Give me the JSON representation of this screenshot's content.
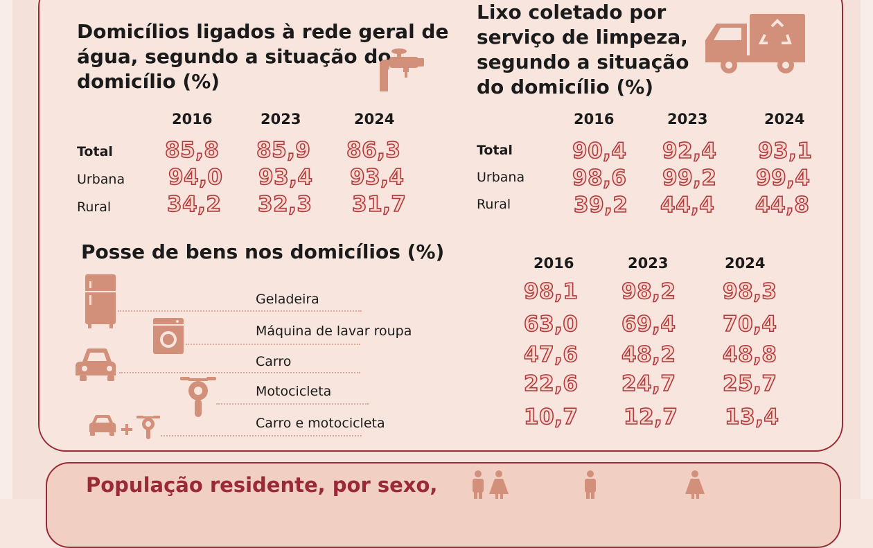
{
  "water": {
    "title_l1": "Domicílios ligados à rede geral de",
    "title_l2": "água, segundo a situação do",
    "title_l3": "domicílio (%)",
    "years": [
      "2016",
      "2023",
      "2024"
    ],
    "rows": [
      {
        "label": "Total",
        "values": [
          "85,8",
          "85,9",
          "86,3"
        ]
      },
      {
        "label": "Urbana",
        "values": [
          "94,0",
          "93,4",
          "93,4"
        ]
      },
      {
        "label": "Rural",
        "values": [
          "34,2",
          "32,3",
          "31,7"
        ]
      }
    ]
  },
  "garbage": {
    "title_l1": "Lixo coletado por",
    "title_l2": "serviço de limpeza,",
    "title_l3": "segundo a situação",
    "title_l4": "do domicílio (%)",
    "years": [
      "2016",
      "2023",
      "2024"
    ],
    "rows": [
      {
        "label": "Total",
        "values": [
          "90,4",
          "92,4",
          "93,1"
        ]
      },
      {
        "label": "Urbana",
        "values": [
          "98,6",
          "99,2",
          "99,4"
        ]
      },
      {
        "label": "Rural",
        "values": [
          "39,2",
          "44,4",
          "44,8"
        ]
      }
    ]
  },
  "goods": {
    "title": "Posse de bens nos domicílios (%)",
    "years": [
      "2016",
      "2023",
      "2024"
    ],
    "rows": [
      {
        "label": "Geladeira",
        "icon": "refrigerator-icon",
        "values": [
          "98,1",
          "98,2",
          "98,3"
        ]
      },
      {
        "label": "Máquina de lavar roupa",
        "icon": "washing-machine-icon",
        "values": [
          "63,0",
          "69,4",
          "70,4"
        ]
      },
      {
        "label": "Carro",
        "icon": "car-icon",
        "values": [
          "47,6",
          "48,2",
          "48,8"
        ]
      },
      {
        "label": "Motocicleta",
        "icon": "motorcycle-icon",
        "values": [
          "22,6",
          "24,7",
          "25,7"
        ]
      },
      {
        "label": "Carro e motocicleta",
        "icon": "car-and-motorcycle-icon",
        "values": [
          "10,7",
          "12,7",
          "13,4"
        ]
      }
    ]
  },
  "population": {
    "title": "População residente, por sexo,"
  },
  "colors": {
    "accent": "#9a2a35",
    "value_outline": "#b23a3f",
    "icon": "#d2907a",
    "background": "#f7e5de"
  }
}
